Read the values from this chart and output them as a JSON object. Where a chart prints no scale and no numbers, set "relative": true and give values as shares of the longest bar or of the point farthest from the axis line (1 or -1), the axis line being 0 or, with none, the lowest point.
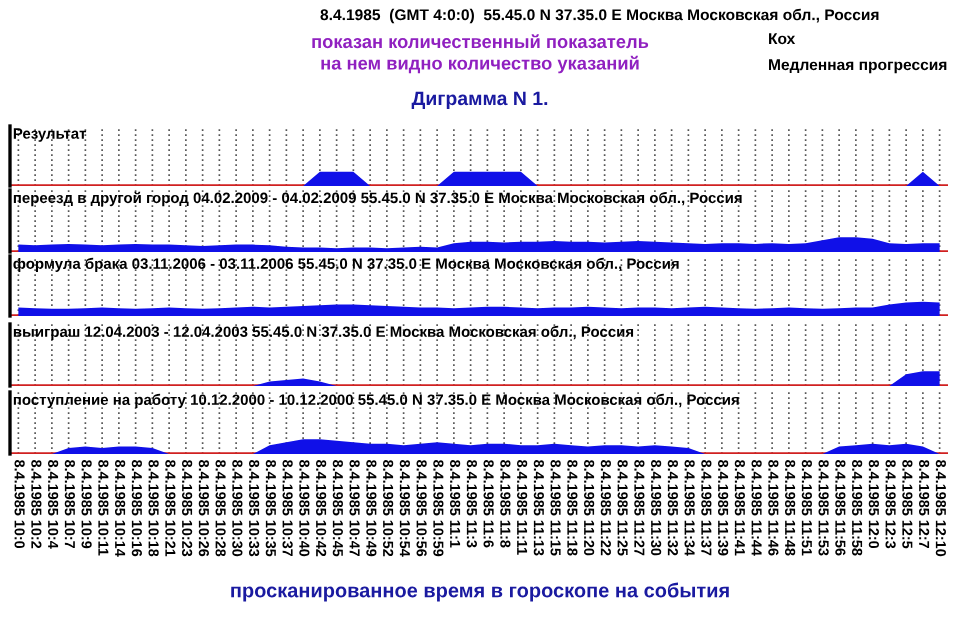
{
  "chart_data": [
    {
      "type": "area",
      "relative": true,
      "title": "Результат",
      "grid": "x",
      "tick_labels": false,
      "color": "#1010e8",
      "annotations": [
        "8.4.1985  (GMT 4:0:0)  55.45.0 N 37.35.0 E Москва Московская обл., Россия",
        "Кох",
        "Медленная прогрессия",
        "показан количественный показатель\nна нем видно количество указаний",
        "Диграмма N 1."
      ],
      "categories": [
        null,
        null,
        null,
        null,
        null,
        null,
        null,
        null,
        null,
        null,
        null,
        null,
        null,
        null,
        null,
        null,
        null,
        null,
        null,
        null,
        null,
        null,
        null,
        null,
        null,
        null,
        null,
        null,
        null,
        null,
        null,
        null,
        null,
        null,
        null,
        null,
        null,
        null,
        null,
        null,
        null,
        null,
        null,
        null,
        null,
        null,
        null,
        null,
        null,
        null,
        null,
        null,
        null,
        null,
        null,
        null
      ],
      "values": [
        0,
        0,
        0,
        0,
        0,
        0,
        0,
        0,
        0,
        0,
        0,
        0,
        0,
        0,
        0,
        0,
        0,
        0,
        1,
        1,
        1,
        0,
        0,
        0,
        0,
        0,
        1,
        1,
        1,
        1,
        1,
        0,
        0,
        0,
        0,
        0,
        0,
        0,
        0,
        0,
        0,
        0,
        0,
        0,
        0,
        0,
        0,
        0,
        0,
        0,
        0,
        0,
        0,
        0,
        1,
        0
      ]
    },
    {
      "type": "area",
      "relative": true,
      "title": "переезд в другой город 04.02.2009 - 04.02.2009 55.45.0 N 37.35.0 E Москва Московская обл., Россия",
      "grid": "x",
      "tick_labels": false,
      "color": "#1010e8",
      "categories": [
        null,
        null,
        null,
        null,
        null,
        null,
        null,
        null,
        null,
        null,
        null,
        null,
        null,
        null,
        null,
        null,
        null,
        null,
        null,
        null,
        null,
        null,
        null,
        null,
        null,
        null,
        null,
        null,
        null,
        null,
        null,
        null,
        null,
        null,
        null,
        null,
        null,
        null,
        null,
        null,
        null,
        null,
        null,
        null,
        null,
        null,
        null,
        null,
        null,
        null,
        null,
        null,
        null,
        null,
        null,
        null
      ],
      "values": [
        0.5,
        0.45,
        0.5,
        0.55,
        0.5,
        0.45,
        0.5,
        0.55,
        0.5,
        0.5,
        0.45,
        0.4,
        0.45,
        0.5,
        0.5,
        0.45,
        0.35,
        0.3,
        0.3,
        0.25,
        0.3,
        0.3,
        0.25,
        0.3,
        0.35,
        0.3,
        0.6,
        0.7,
        0.7,
        0.65,
        0.7,
        0.7,
        0.75,
        0.7,
        0.7,
        0.65,
        0.7,
        0.75,
        0.7,
        0.65,
        0.6,
        0.55,
        0.6,
        0.6,
        0.55,
        0.6,
        0.55,
        0.6,
        0.8,
        1,
        1,
        0.9,
        0.6,
        0.55,
        0.6,
        0.6
      ]
    },
    {
      "type": "area",
      "relative": true,
      "title": "формула брака 03.11.2006 - 03.11.2006 55.45.0 N 37.35.0 E Москва Московская обл., Россия",
      "grid": "x",
      "tick_labels": false,
      "color": "#1010e8",
      "categories": [
        null,
        null,
        null,
        null,
        null,
        null,
        null,
        null,
        null,
        null,
        null,
        null,
        null,
        null,
        null,
        null,
        null,
        null,
        null,
        null,
        null,
        null,
        null,
        null,
        null,
        null,
        null,
        null,
        null,
        null,
        null,
        null,
        null,
        null,
        null,
        null,
        null,
        null,
        null,
        null,
        null,
        null,
        null,
        null,
        null,
        null,
        null,
        null,
        null,
        null,
        null,
        null,
        null,
        null,
        null,
        null
      ],
      "values": [
        0.6,
        0.55,
        0.5,
        0.5,
        0.55,
        0.6,
        0.55,
        0.5,
        0.55,
        0.6,
        0.55,
        0.5,
        0.55,
        0.6,
        0.65,
        0.6,
        0.65,
        0.7,
        0.75,
        0.8,
        0.8,
        0.75,
        0.7,
        0.65,
        0.6,
        0.6,
        0.55,
        0.6,
        0.65,
        0.65,
        0.6,
        0.55,
        0.6,
        0.6,
        0.65,
        0.6,
        0.55,
        0.6,
        0.6,
        0.55,
        0.6,
        0.65,
        0.6,
        0.55,
        0.5,
        0.55,
        0.6,
        0.55,
        0.5,
        0.55,
        0.6,
        0.6,
        0.8,
        0.95,
        1,
        0.95
      ]
    },
    {
      "type": "area",
      "relative": true,
      "title": "выиграш 12.04.2003 - 12.04.2003 55.45.0 N 37.35.0 E Москва Московская обл., Россия",
      "grid": "x",
      "tick_labels": false,
      "color": "#1010e8",
      "categories": [
        null,
        null,
        null,
        null,
        null,
        null,
        null,
        null,
        null,
        null,
        null,
        null,
        null,
        null,
        null,
        null,
        null,
        null,
        null,
        null,
        null,
        null,
        null,
        null,
        null,
        null,
        null,
        null,
        null,
        null,
        null,
        null,
        null,
        null,
        null,
        null,
        null,
        null,
        null,
        null,
        null,
        null,
        null,
        null,
        null,
        null,
        null,
        null,
        null,
        null,
        null,
        null,
        null,
        null,
        null,
        null
      ],
      "values": [
        0,
        0,
        0,
        0,
        0,
        0,
        0,
        0,
        0,
        0,
        0,
        0,
        0,
        0,
        0,
        0.3,
        0.4,
        0.5,
        0.3,
        0,
        0,
        0,
        0,
        0,
        0,
        0,
        0,
        0,
        0,
        0,
        0,
        0,
        0,
        0,
        0,
        0,
        0,
        0,
        0,
        0,
        0,
        0,
        0,
        0,
        0,
        0,
        0,
        0,
        0,
        0,
        0,
        0,
        0,
        0.8,
        1,
        1
      ]
    },
    {
      "type": "area",
      "relative": true,
      "title": "поступление на работу 10.12.2000 - 10.12.2000 55.45.0 N 37.35.0 E Москва Московская обл., Россия",
      "grid": "x",
      "tick_labels": "x",
      "color": "#1010e8",
      "annotations": [
        "просканированное время в гороскопе на события"
      ],
      "categories": [
        "8.4.1985 10:0",
        "8.4.1985 10:2",
        "8.4.1985 10:4",
        "8.4.1985 10:7",
        "8.4.1985 10:9",
        "8.4.1985 10:11",
        "8.4.1985 10:14",
        "8.4.1985 10:16",
        "8.4.1985 10:18",
        "8.4.1985 10:21",
        "8.4.1985 10:23",
        "8.4.1985 10:26",
        "8.4.1985 10:28",
        "8.4.1985 10:30",
        "8.4.1985 10:33",
        "8.4.1985 10:35",
        "8.4.1985 10:37",
        "8.4.1985 10:40",
        "8.4.1985 10:42",
        "8.4.1985 10:45",
        "8.4.1985 10:47",
        "8.4.1985 10:49",
        "8.4.1985 10:52",
        "8.4.1985 10:54",
        "8.4.1985 10:56",
        "8.4.1985 10:59",
        "8.4.1985 11:1",
        "8.4.1985 11:3",
        "8.4.1985 11:6",
        "8.4.1985 11:8",
        "8.4.1985 11:11",
        "8.4.1985 11:13",
        "8.4.1985 11:15",
        "8.4.1985 11:18",
        "8.4.1985 11:20",
        "8.4.1985 11:22",
        "8.4.1985 11:25",
        "8.4.1985 11:27",
        "8.4.1985 11:30",
        "8.4.1985 11:32",
        "8.4.1985 11:34",
        "8.4.1985 11:37",
        "8.4.1985 11:39",
        "8.4.1985 11:41",
        "8.4.1985 11:44",
        "8.4.1985 11:46",
        "8.4.1985 11:48",
        "8.4.1985 11:51",
        "8.4.1985 11:53",
        "8.4.1985 11:56",
        "8.4.1985 11:58",
        "8.4.1985 12:0",
        "8.4.1985 12:3",
        "8.4.1985 12:5",
        "8.4.1985 12:7",
        "8.4.1985 12:10"
      ],
      "values": [
        0,
        0,
        0,
        0.4,
        0.5,
        0.4,
        0.5,
        0.5,
        0.4,
        0,
        0,
        0,
        0,
        0,
        0,
        0.6,
        0.8,
        1,
        1,
        0.9,
        0.8,
        0.7,
        0.7,
        0.6,
        0.7,
        0.8,
        0.7,
        0.6,
        0.7,
        0.7,
        0.6,
        0.6,
        0.7,
        0.6,
        0.5,
        0.6,
        0.6,
        0.5,
        0.6,
        0.5,
        0.4,
        0,
        0,
        0,
        0,
        0,
        0,
        0,
        0,
        0.5,
        0.6,
        0.7,
        0.6,
        0.7,
        0.5,
        0
      ]
    }
  ]
}
